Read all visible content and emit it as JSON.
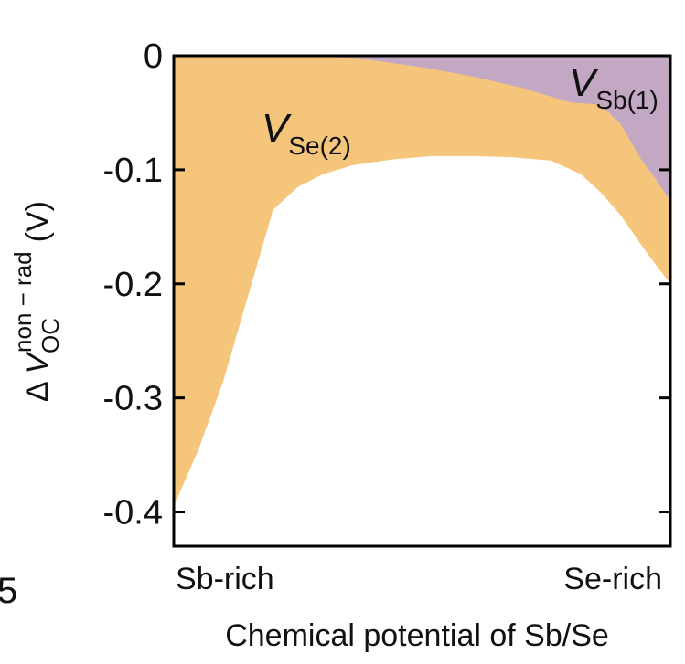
{
  "chart_data": {
    "type": "area",
    "ylabel": {
      "delta": "Δ",
      "symbol": "V",
      "subscript": "OC",
      "superscript": "non − rad",
      "unit": "(V)"
    },
    "xlabel": "Chemical potential of Sb/Se",
    "x_categories": [
      "Sb-rich",
      "Se-rich"
    ],
    "xlim": [
      0,
      1
    ],
    "ylim": [
      -0.43,
      0
    ],
    "yticks": [
      {
        "value": 0,
        "label": "0"
      },
      {
        "value": -0.1,
        "label": "-0.1"
      },
      {
        "value": -0.2,
        "label": "-0.2"
      },
      {
        "value": -0.3,
        "label": "-0.3"
      },
      {
        "value": -0.4,
        "label": "-0.4"
      }
    ],
    "series": [
      {
        "name_main": "V",
        "name_sub": "Se(2)",
        "color": "#f5c57c",
        "x": [
          0,
          0.05,
          0.1,
          0.14,
          0.2,
          0.25,
          0.3,
          0.36,
          0.44,
          0.52,
          0.6,
          0.68,
          0.76,
          0.82,
          0.86,
          0.9,
          0.94,
          0.97,
          1
        ],
        "y": [
          -0.395,
          -0.345,
          -0.285,
          -0.225,
          -0.135,
          -0.115,
          -0.104,
          -0.096,
          -0.091,
          -0.088,
          -0.088,
          -0.089,
          -0.092,
          -0.104,
          -0.12,
          -0.14,
          -0.165,
          -0.183,
          -0.2
        ]
      },
      {
        "name_main": "V",
        "name_sub": "Sb(1)",
        "color": "#c2a8c2",
        "x": [
          0,
          0.2,
          0.3,
          0.4,
          0.5,
          0.6,
          0.7,
          0.8,
          0.86,
          0.9,
          0.94,
          0.97,
          1
        ],
        "y": [
          0,
          0,
          0,
          -0.004,
          -0.01,
          -0.018,
          -0.028,
          -0.041,
          -0.043,
          -0.06,
          -0.09,
          -0.108,
          -0.127
        ]
      }
    ],
    "edge_glyph": "5"
  }
}
